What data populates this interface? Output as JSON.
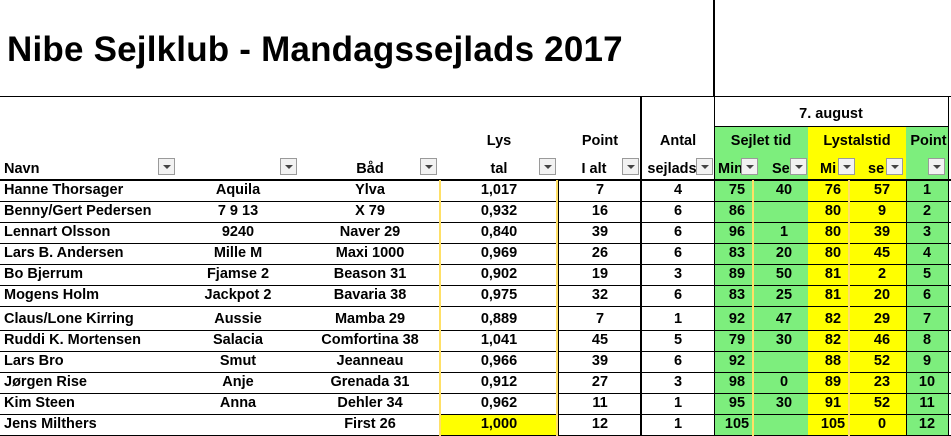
{
  "title": "Nibe Sejlklub - Mandagssejlads 2017",
  "date_header": "7. august",
  "headers": {
    "navn": "Navn",
    "baad": "Båd",
    "lys_top": "Lys",
    "lys_bottom": "tal",
    "point_top": "Point",
    "point_bottom": "I alt",
    "antal_top": "Antal",
    "antal_bottom": "sejlads",
    "sejlet_tid": "Sejlet tid",
    "lystalstid": "Lystalstid",
    "point_last": "Point",
    "min1": "Min",
    "sek1": "Se",
    "min2": "Mi",
    "sek2": "se"
  },
  "colors": {
    "green": "#7dee7d",
    "yellow": "#ffff00"
  },
  "rows": [
    {
      "navn": "Hanne Thorsager",
      "sejlnr": "Aquila",
      "baad": "Ylva",
      "lys": "1,017",
      "point": "7",
      "antal": "4",
      "smin": "75",
      "ssek": "40",
      "lmin": "76",
      "lsek": "57",
      "place": "1"
    },
    {
      "navn": "Benny/Gert Pedersen",
      "sejlnr": "7 9 13",
      "baad": "X 79",
      "lys": "0,932",
      "point": "16",
      "antal": "6",
      "smin": "86",
      "ssek": "",
      "lmin": "80",
      "lsek": "9",
      "place": "2"
    },
    {
      "navn": "Lennart Olsson",
      "sejlnr": "9240",
      "baad": "Naver 29",
      "lys": "0,840",
      "point": "39",
      "antal": "6",
      "smin": "96",
      "ssek": "1",
      "lmin": "80",
      "lsek": "39",
      "place": "3"
    },
    {
      "navn": "Lars B. Andersen",
      "sejlnr": "Mille M",
      "baad": "Maxi 1000",
      "lys": "0,969",
      "point": "26",
      "antal": "6",
      "smin": "83",
      "ssek": "20",
      "lmin": "80",
      "lsek": "45",
      "place": "4"
    },
    {
      "navn": "Bo Bjerrum",
      "sejlnr": "Fjamse 2",
      "baad": "Beason 31",
      "lys": "0,902",
      "point": "19",
      "antal": "3",
      "smin": "89",
      "ssek": "50",
      "lmin": "81",
      "lsek": "2",
      "place": "5"
    },
    {
      "navn": "Mogens Holm",
      "sejlnr": "Jackpot 2",
      "baad": "Bavaria 38",
      "lys": "0,975",
      "point": "32",
      "antal": "6",
      "smin": "83",
      "ssek": "25",
      "lmin": "81",
      "lsek": "20",
      "place": "6"
    },
    {
      "navn": "Claus/Lone Kirring",
      "sejlnr": "Aussie",
      "baad": "Mamba 29",
      "lys": "0,889",
      "point": "7",
      "antal": "1",
      "smin": "92",
      "ssek": "47",
      "lmin": "82",
      "lsek": "29",
      "place": "7"
    },
    {
      "navn": "Ruddi K. Mortensen",
      "sejlnr": "Salacia",
      "baad": "Comfortina 38",
      "lys": "1,041",
      "point": "45",
      "antal": "5",
      "smin": "79",
      "ssek": "30",
      "lmin": "82",
      "lsek": "46",
      "place": "8"
    },
    {
      "navn": "Lars Bro",
      "sejlnr": "Smut",
      "baad": "Jeanneau",
      "lys": "0,966",
      "point": "39",
      "antal": "6",
      "smin": "92",
      "ssek": "",
      "lmin": "88",
      "lsek": "52",
      "place": "9"
    },
    {
      "navn": "Jørgen Rise",
      "sejlnr": "Anje",
      "baad": "Grenada 31",
      "lys": "0,912",
      "point": "27",
      "antal": "3",
      "smin": "98",
      "ssek": "0",
      "lmin": "89",
      "lsek": "23",
      "place": "10"
    },
    {
      "navn": "Kim Steen",
      "sejlnr": "Anna",
      "baad": "Dehler 34",
      "lys": "0,962",
      "point": "11",
      "antal": "1",
      "smin": "95",
      "ssek": "30",
      "lmin": "91",
      "lsek": "52",
      "place": "11"
    },
    {
      "navn": "Jens Milthers",
      "sejlnr": "",
      "baad": "First 26",
      "lys": "1,000",
      "point": "12",
      "antal": "1",
      "smin": "105",
      "ssek": "",
      "lmin": "105",
      "lsek": "0",
      "place": "12"
    }
  ]
}
